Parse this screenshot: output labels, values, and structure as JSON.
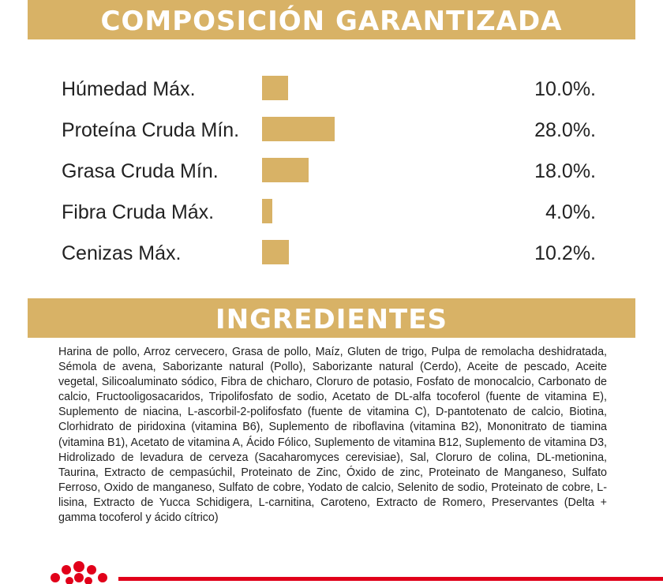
{
  "composition": {
    "title": "COMPOSICIÓN GARANTIZADA",
    "rows": [
      {
        "label": "Húmedad Máx.",
        "value": 10.0,
        "value_label": "10.0%."
      },
      {
        "label": "Proteína Cruda Mín.",
        "value": 28.0,
        "value_label": "28.0%."
      },
      {
        "label": "Grasa Cruda Mín.",
        "value": 18.0,
        "value_label": "18.0%."
      },
      {
        "label": "Fibra Cruda Máx.",
        "value": 4.0,
        "value_label": "4.0%."
      },
      {
        "label": "Cenizas Máx.",
        "value": 10.2,
        "value_label": "10.2%."
      }
    ]
  },
  "ingredients": {
    "title": "INGREDIENTES",
    "text": "Harina de pollo, Arroz cervecero, Grasa de pollo, Maíz, Gluten de trigo, Pulpa de remolacha deshidratada, Sémola de avena, Saborizante natural (Pollo), Saborizante natural (Cerdo), Aceite de pescado, Aceite vegetal, Silicoaluminato sódico, Fibra de chicharo, Cloruro de potasio, Fosfato de monocalcio, Carbonato de calcio, Fructooligosacaridos, Tripolifosfato de sodio, Acetato de DL-alfa tocoferol (fuente de vitamina E), Suplemento de niacina, L-ascorbil-2-polifosfato (fuente de vitamina C), D-pantotenato de calcio, Biotina, Clorhidrato de piridoxina (vitamina B6), Suplemento de riboflavina (vitamina B2), Mononitrato de tiamina (vitamina B1), Acetato de vitamina A, Ácido Fólico, Suplemento de vitamina B12, Suplemento de vitamina D3, Hidrolizado de levadura de cerveza (Sacaharomyces cerevisiae), Sal, Cloruro de colina, DL-metionina, Taurina, Extracto de cempasúchil, Proteinato de Zinc, Óxido de zinc, Proteinato de Manganeso, Sulfato Ferroso, Oxido de manganeso, Sulfato de cobre, Yodato de calcio, Selenito de sodio, Proteinato de cobre, L-lisina, Extracto de Yucca Schidigera, L-carnitina, Caroteno, Extracto de Romero, Preservantes (Delta + gamma tocoferol y ácido cítrico)"
  }
}
